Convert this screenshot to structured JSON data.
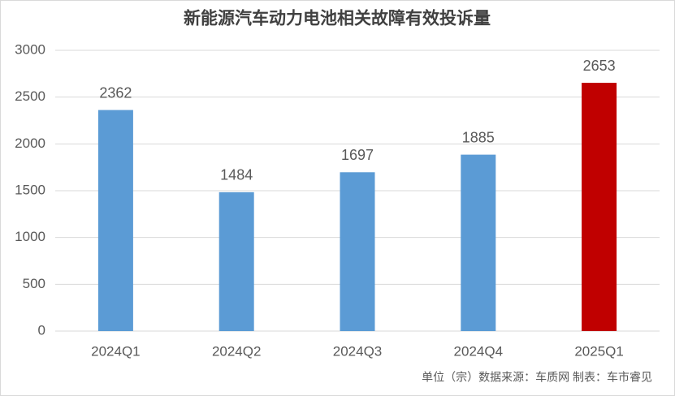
{
  "chart_data": {
    "type": "bar",
    "title": "新能源汽车动力电池相关故障有效投诉量",
    "categories": [
      "2024Q1",
      "2024Q2",
      "2024Q3",
      "2024Q4",
      "2025Q1"
    ],
    "values": [
      2362,
      1484,
      1697,
      1885,
      2653
    ],
    "colors": [
      "#5b9bd5",
      "#5b9bd5",
      "#5b9bd5",
      "#5b9bd5",
      "#c00000"
    ],
    "ylim": [
      0,
      3000
    ],
    "yticks": [
      0,
      500,
      1000,
      1500,
      2000,
      2500,
      3000
    ],
    "grid": true,
    "note": "单位（宗）数据来源：车质网 制表：车市睿见"
  }
}
